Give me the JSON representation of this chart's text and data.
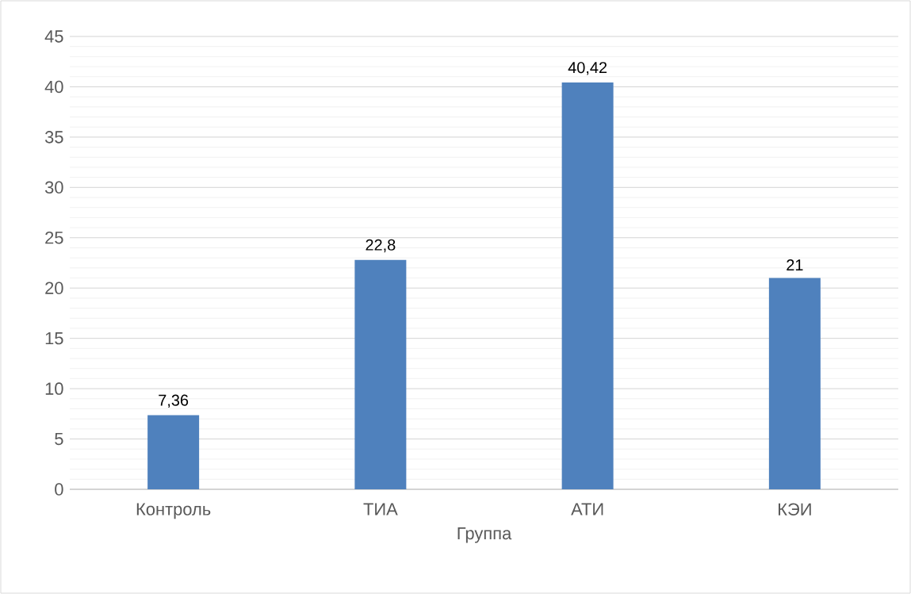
{
  "chart_data": {
    "type": "bar",
    "xlabel": "Группа",
    "categories": [
      "Контроль",
      "ТИА",
      "АТИ",
      "КЭИ"
    ],
    "values": [
      7.36,
      22.8,
      40.42,
      21
    ],
    "color": "#4f81bd",
    "value_labels": [
      "7,36",
      "22,8",
      "40,42",
      "21"
    ],
    "ylim": [
      0,
      45
    ],
    "yticks": [
      0,
      5,
      10,
      15,
      20,
      25,
      30,
      35,
      40,
      45
    ],
    "grid": "y"
  }
}
